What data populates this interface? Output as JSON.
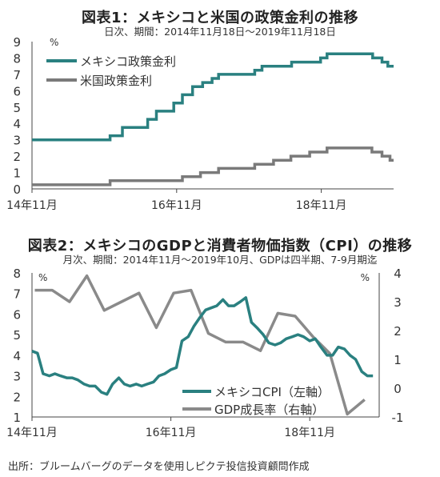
{
  "source": "出所：ブルームバーグのデータを使用しピクテ投信投資顧問作成",
  "chart_data": [
    {
      "type": "line",
      "title": "図表1：メキシコと米国の政策金利の推移",
      "subtitle": "日次、期間：2014年11月18日～2019年11月18日",
      "ylabel_unit": "%",
      "ylim": [
        0,
        9
      ],
      "yticks": [
        "0",
        "1",
        "2",
        "3",
        "4",
        "5",
        "6",
        "7",
        "8",
        "9"
      ],
      "x_tick_labels": [
        "14年11月",
        "16年11月",
        "18年11月"
      ],
      "x_tick_positions": [
        2014.88,
        2016.88,
        2018.88
      ],
      "xlim": [
        2014.88,
        2019.88
      ],
      "grid": false,
      "legend": "top-left",
      "colors": {
        "mexico": "#2a8080",
        "us": "#7a7a7a"
      },
      "series": [
        {
          "name": "メキシコ政策金利",
          "color": "#2a8080",
          "points": [
            [
              2014.88,
              3.0
            ],
            [
              2015.96,
              3.0
            ],
            [
              2015.96,
              3.25
            ],
            [
              2016.13,
              3.25
            ],
            [
              2016.13,
              3.75
            ],
            [
              2016.48,
              3.75
            ],
            [
              2016.48,
              4.25
            ],
            [
              2016.6,
              4.25
            ],
            [
              2016.6,
              4.75
            ],
            [
              2016.84,
              4.75
            ],
            [
              2016.84,
              5.25
            ],
            [
              2016.96,
              5.25
            ],
            [
              2016.96,
              5.75
            ],
            [
              2017.1,
              5.75
            ],
            [
              2017.1,
              6.25
            ],
            [
              2017.24,
              6.25
            ],
            [
              2017.24,
              6.5
            ],
            [
              2017.37,
              6.5
            ],
            [
              2017.37,
              6.75
            ],
            [
              2017.46,
              6.75
            ],
            [
              2017.46,
              7.0
            ],
            [
              2017.96,
              7.0
            ],
            [
              2017.96,
              7.25
            ],
            [
              2018.06,
              7.25
            ],
            [
              2018.06,
              7.5
            ],
            [
              2018.47,
              7.5
            ],
            [
              2018.47,
              7.75
            ],
            [
              2018.87,
              7.75
            ],
            [
              2018.87,
              8.0
            ],
            [
              2018.96,
              8.0
            ],
            [
              2018.96,
              8.25
            ],
            [
              2019.59,
              8.25
            ],
            [
              2019.59,
              8.0
            ],
            [
              2019.72,
              8.0
            ],
            [
              2019.72,
              7.75
            ],
            [
              2019.8,
              7.75
            ],
            [
              2019.8,
              7.5
            ],
            [
              2019.88,
              7.5
            ]
          ]
        },
        {
          "name": "米国政策金利",
          "color": "#7a7a7a",
          "points": [
            [
              2014.88,
              0.25
            ],
            [
              2015.96,
              0.25
            ],
            [
              2015.96,
              0.5
            ],
            [
              2016.96,
              0.5
            ],
            [
              2016.96,
              0.75
            ],
            [
              2017.21,
              0.75
            ],
            [
              2017.21,
              1.0
            ],
            [
              2017.46,
              1.0
            ],
            [
              2017.46,
              1.25
            ],
            [
              2017.96,
              1.25
            ],
            [
              2017.96,
              1.5
            ],
            [
              2018.22,
              1.5
            ],
            [
              2018.22,
              1.75
            ],
            [
              2018.46,
              1.75
            ],
            [
              2018.46,
              2.0
            ],
            [
              2018.72,
              2.0
            ],
            [
              2018.72,
              2.25
            ],
            [
              2018.96,
              2.25
            ],
            [
              2018.96,
              2.5
            ],
            [
              2019.58,
              2.5
            ],
            [
              2019.58,
              2.25
            ],
            [
              2019.72,
              2.25
            ],
            [
              2019.72,
              2.0
            ],
            [
              2019.83,
              2.0
            ],
            [
              2019.83,
              1.75
            ],
            [
              2019.88,
              1.75
            ]
          ]
        }
      ]
    },
    {
      "type": "line",
      "title": "図表2：メキシコのGDPと消費者物価指数（CPI）の推移",
      "subtitle": "月次、期間：2014年11月～2019年10月、GDPは四半期、7-9月期迄",
      "ylabel_left_unit": "%",
      "ylabel_right_unit": "%",
      "ylim_left": [
        1,
        8
      ],
      "ylim_right": [
        -1,
        4
      ],
      "yticks_left": [
        "1",
        "2",
        "3",
        "4",
        "5",
        "6",
        "7",
        "8"
      ],
      "yticks_right": [
        "-1",
        "0",
        "1",
        "2",
        "3",
        "4"
      ],
      "x_tick_labels": [
        "14年11月",
        "16年11月",
        "18年11月"
      ],
      "x_tick_positions": [
        2014.88,
        2016.88,
        2018.88
      ],
      "xlim": [
        2014.88,
        2019.88
      ],
      "grid": false,
      "legend": "bottom-right",
      "series": [
        {
          "name": "メキシコCPI（左軸）",
          "axis": "left",
          "color": "#2a8080",
          "x": [
            2014.88,
            2014.96,
            2015.04,
            2015.13,
            2015.21,
            2015.29,
            2015.38,
            2015.46,
            2015.54,
            2015.63,
            2015.71,
            2015.79,
            2015.88,
            2015.96,
            2016.04,
            2016.13,
            2016.21,
            2016.29,
            2016.38,
            2016.46,
            2016.54,
            2016.63,
            2016.71,
            2016.79,
            2016.88,
            2016.96,
            2017.04,
            2017.13,
            2017.21,
            2017.29,
            2017.38,
            2017.46,
            2017.54,
            2017.63,
            2017.71,
            2017.79,
            2017.88,
            2017.96,
            2018.04,
            2018.13,
            2018.21,
            2018.29,
            2018.38,
            2018.46,
            2018.54,
            2018.63,
            2018.71,
            2018.79,
            2018.88,
            2018.96,
            2019.04,
            2019.13,
            2019.21,
            2019.29,
            2019.38,
            2019.46,
            2019.54,
            2019.63,
            2019.71,
            2019.79
          ],
          "values": [
            4.2,
            4.1,
            3.1,
            3.0,
            3.1,
            3.0,
            2.9,
            2.9,
            2.8,
            2.6,
            2.5,
            2.5,
            2.2,
            2.1,
            2.6,
            2.9,
            2.6,
            2.5,
            2.6,
            2.5,
            2.6,
            2.7,
            3.0,
            3.1,
            3.3,
            3.4,
            4.7,
            4.9,
            5.4,
            5.8,
            6.2,
            6.3,
            6.4,
            6.7,
            6.4,
            6.4,
            6.6,
            6.8,
            5.6,
            5.3,
            5.0,
            4.6,
            4.5,
            4.6,
            4.8,
            4.9,
            5.0,
            4.9,
            4.7,
            4.8,
            4.4,
            4.0,
            4.0,
            4.4,
            4.3,
            4.0,
            3.8,
            3.2,
            3.0,
            3.0
          ]
        },
        {
          "name": "GDP成長率（右軸）",
          "axis": "right",
          "color": "#8a8a8a",
          "x": [
            2014.92,
            2015.17,
            2015.42,
            2015.67,
            2015.92,
            2016.17,
            2016.42,
            2016.67,
            2016.92,
            2017.17,
            2017.42,
            2017.67,
            2017.92,
            2018.17,
            2018.42,
            2018.67,
            2018.92,
            2019.17,
            2019.42,
            2019.67
          ],
          "values": [
            3.4,
            3.4,
            3.0,
            3.9,
            2.7,
            3.0,
            3.3,
            2.1,
            3.3,
            3.4,
            1.9,
            1.6,
            1.6,
            1.3,
            2.6,
            2.5,
            1.8,
            1.2,
            -0.9,
            -0.4
          ]
        }
      ]
    }
  ]
}
